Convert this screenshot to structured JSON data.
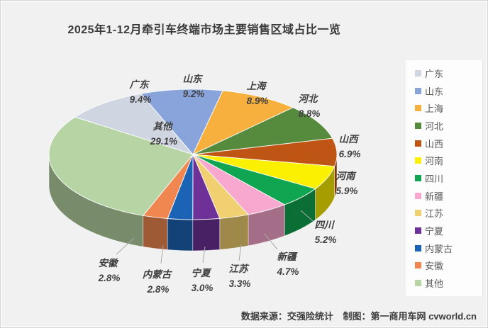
{
  "title": "2025年1-12月牵引车终端市场主要销售区域占比一览",
  "footer": {
    "source_label": "数据来源：交强险统计",
    "credit_label": "制图：第一商用车网 cvworld.cn"
  },
  "chart_data": {
    "type": "pie",
    "title": "2025年1-12月牵引车终端市场主要销售区域占比一览",
    "unit": "%",
    "style": "3d-pie",
    "start_angle_deg": -55,
    "legend_position": "right",
    "background_color": "#f1f1f1",
    "legend_background": "#fdfdfd",
    "label_color": "#3f3f3f",
    "regions": [
      {
        "name": "广东",
        "value": 9.4,
        "color": "#CFD6E2"
      },
      {
        "name": "山东",
        "value": 9.2,
        "color": "#89A4DA"
      },
      {
        "name": "上海",
        "value": 8.9,
        "color": "#F7AF3D"
      },
      {
        "name": "河北",
        "value": 8.8,
        "color": "#568A3D"
      },
      {
        "name": "山西",
        "value": 6.9,
        "color": "#BF5514"
      },
      {
        "name": "河南",
        "value": 5.9,
        "color": "#FCF001"
      },
      {
        "name": "四川",
        "value": 5.2,
        "color": "#10A651"
      },
      {
        "name": "新疆",
        "value": 4.7,
        "color": "#F8A7CE"
      },
      {
        "name": "江苏",
        "value": 3.3,
        "color": "#F0D070"
      },
      {
        "name": "宁夏",
        "value": 3.0,
        "color": "#6D3197"
      },
      {
        "name": "内蒙古",
        "value": 2.8,
        "color": "#1B64B5"
      },
      {
        "name": "安徽",
        "value": 2.8,
        "color": "#F08750"
      },
      {
        "name": "其他",
        "value": 29.1,
        "color": "#B6D4A4"
      }
    ]
  }
}
